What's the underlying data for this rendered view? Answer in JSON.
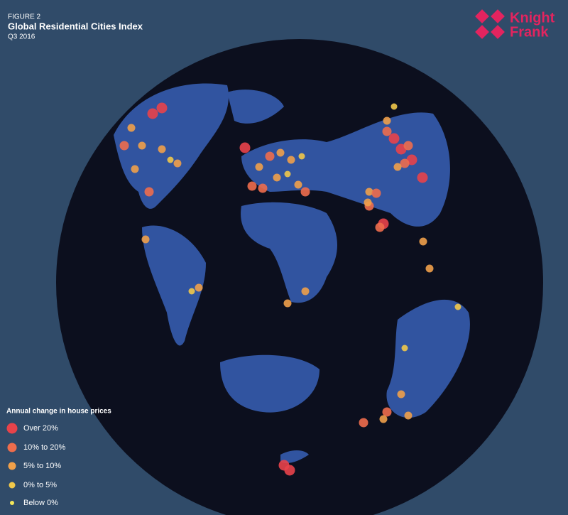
{
  "header": {
    "figure": "FIGURE 2",
    "title": "Global Residential Cities Index",
    "subtitle": "Q3 2016"
  },
  "logo": {
    "line1": "Knight",
    "line2": "Frank"
  },
  "legend": {
    "title": "Annual change in house prices",
    "items": [
      {
        "label": "Over 20%",
        "color": "#e8434a"
      },
      {
        "label": "10% to 20%",
        "color": "#ee6d4c"
      },
      {
        "label": "5% to 10%",
        "color": "#f0a04a"
      },
      {
        "label": "0% to 5%",
        "color": "#f1c84a"
      },
      {
        "label": "Below 0%",
        "color": "#f3e65a"
      }
    ]
  }
}
